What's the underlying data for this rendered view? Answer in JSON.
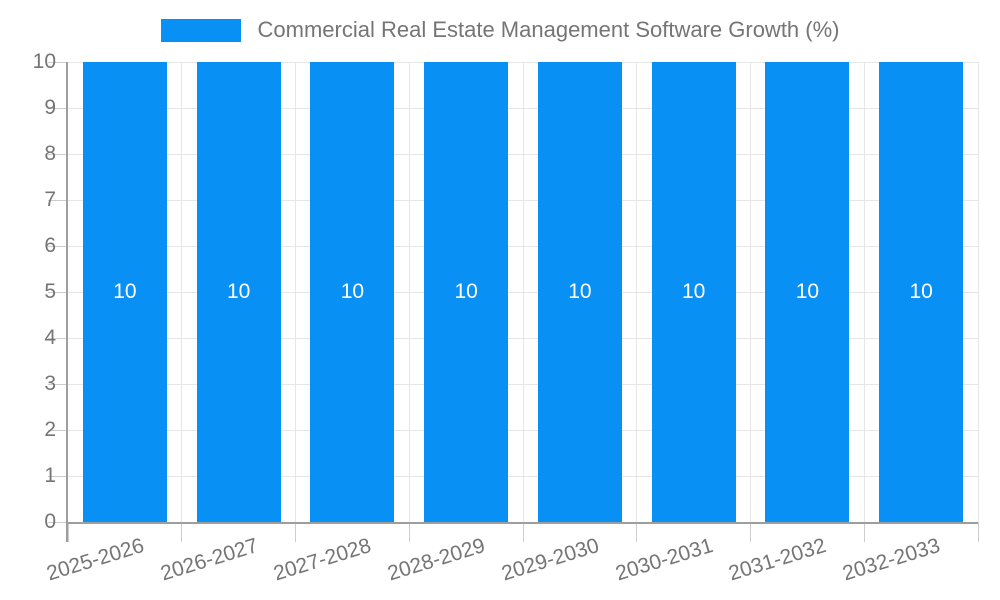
{
  "chart_data": {
    "type": "bar",
    "title": "Commercial Real Estate Management Software Growth (%)",
    "categories": [
      "2025-2026",
      "2026-2027",
      "2027-2028",
      "2028-2029",
      "2029-2030",
      "2030-2031",
      "2031-2032",
      "2032-2033"
    ],
    "values": [
      10,
      10,
      10,
      10,
      10,
      10,
      10,
      10
    ],
    "bar_value_labels": [
      "10",
      "10",
      "10",
      "10",
      "10",
      "10",
      "10",
      "10"
    ],
    "xlabel": "",
    "ylabel": "",
    "ylim": [
      0,
      10
    ],
    "y_ticks": [
      0,
      1,
      2,
      3,
      4,
      5,
      6,
      7,
      8,
      9,
      10
    ],
    "grid": true,
    "legend_position": "top"
  },
  "colors": {
    "bar": "#0890f5",
    "bar_label": "#ffffff",
    "axis_text": "#757575",
    "grid_line": "#e6e6e6",
    "tick": "#cccccc",
    "axis_line": "#9e9e9e",
    "background": "#ffffff"
  }
}
